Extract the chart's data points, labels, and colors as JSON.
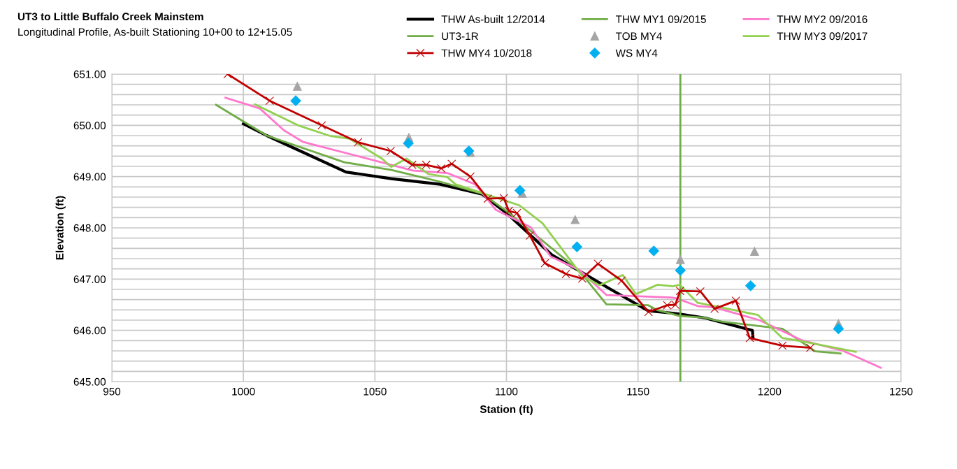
{
  "chart_data": {
    "type": "line",
    "title": "UT3 to Little Buffalo Creek Mainstem",
    "subtitle": "Longitudinal Profile, As-built Stationing 10+00 to 12+15.05",
    "xlabel": "Station (ft)",
    "ylabel": "Elevation (ft)",
    "xlim": [
      950,
      1250
    ],
    "xticks": [
      950,
      1000,
      1050,
      1100,
      1150,
      1200,
      1250
    ],
    "ylim": [
      645,
      651
    ],
    "yticks": [
      {
        "value": 645,
        "label": "645.00"
      },
      {
        "value": 645.2,
        "label": null
      },
      {
        "value": 645.4,
        "label": null
      },
      {
        "value": 645.6,
        "label": null
      },
      {
        "value": 645.8,
        "label": null
      },
      {
        "value": 646,
        "label": "646.00"
      },
      {
        "value": 646.2,
        "label": null
      },
      {
        "value": 646.4,
        "label": null
      },
      {
        "value": 646.6,
        "label": null
      },
      {
        "value": 646.8,
        "label": null
      },
      {
        "value": 647,
        "label": "647.00"
      },
      {
        "value": 647.2,
        "label": null
      },
      {
        "value": 647.4,
        "label": null
      },
      {
        "value": 647.6,
        "label": null
      },
      {
        "value": 647.8,
        "label": null
      },
      {
        "value": 648,
        "label": "648.00"
      },
      {
        "value": 648.2,
        "label": null
      },
      {
        "value": 648.4,
        "label": null
      },
      {
        "value": 648.6,
        "label": null
      },
      {
        "value": 648.8,
        "label": null
      },
      {
        "value": 649,
        "label": "649.00"
      },
      {
        "value": 649.2,
        "label": null
      },
      {
        "value": 649.4,
        "label": null
      },
      {
        "value": 649.6,
        "label": null
      },
      {
        "value": 649.8,
        "label": null
      },
      {
        "value": 650,
        "label": "650.00"
      },
      {
        "value": 650.2,
        "label": null
      },
      {
        "value": 650.4,
        "label": null
      },
      {
        "value": 650.6,
        "label": null
      },
      {
        "value": 650.8,
        "label": null
      },
      {
        "value": 651,
        "label": "651.00"
      }
    ],
    "grid": true,
    "legend": "top right",
    "series": [
      {
        "name": "THW As-built 12/2014",
        "color": "#000000",
        "marker": "none",
        "x": [
          1000,
          1008.9,
          1039,
          1056.2,
          1074.8,
          1090.7,
          1100,
          1117.3,
          1128.7,
          1139.3,
          1153.9,
          1162.4,
          1165.9,
          1175.7,
          1193.5,
          1193.7
        ],
        "values": [
          650.03,
          649.8,
          649.09,
          648.96,
          648.85,
          648.66,
          648.29,
          647.47,
          647.13,
          646.81,
          646.38,
          646.34,
          646.32,
          646.24,
          646.0,
          645.87
        ]
      },
      {
        "name": "THW MY1 09/2015",
        "color": "#70ad47",
        "marker": "none",
        "x": [
          989.6,
          1008.9,
          1038.3,
          1056.2,
          1074.8,
          1090.7,
          1100,
          1127.9,
          1138,
          1153.9,
          1157.1,
          1165.9,
          1175.2,
          1181.8,
          1204.9,
          1217.4,
          1227
        ],
        "values": [
          650.4,
          649.8,
          649.28,
          649.13,
          648.9,
          648.67,
          648.33,
          647.15,
          646.51,
          646.49,
          646.4,
          646.28,
          646.25,
          646.17,
          646.03,
          645.59,
          645.55
        ]
      },
      {
        "name": "THW MY2 09/2016",
        "color": "#ff77cc",
        "marker": "none",
        "x": [
          993.2,
          1006.2,
          1015.5,
          1022.5,
          1056.2,
          1064.2,
          1077.5,
          1088.1,
          1096,
          1109.3,
          1116.8,
          1127.9,
          1138,
          1162.4,
          1164.3,
          1173,
          1178.9,
          1196.1,
          1212.1,
          1228,
          1242.3
        ],
        "values": [
          650.54,
          650.33,
          649.9,
          649.68,
          649.23,
          649.12,
          649.07,
          648.85,
          648.35,
          648.01,
          647.44,
          647.17,
          646.69,
          646.64,
          646.63,
          646.47,
          646.45,
          646.2,
          645.81,
          645.6,
          645.27
        ]
      },
      {
        "name": "UT3-1R",
        "color": "#70ad47",
        "marker": "none",
        "x": [
          1166.1,
          1166.1
        ],
        "values": [
          645,
          651
        ]
      },
      {
        "name": "TOB MY4",
        "type": "scatter",
        "color": "#a5a5a5",
        "marker": "triangle",
        "x": [
          1020.5,
          1062.9,
          1086.3,
          1106,
          1126.1,
          1166.1,
          1194.3,
          1226.2
        ],
        "values": [
          650.76,
          649.76,
          649.47,
          648.67,
          648.16,
          647.38,
          647.54,
          646.13
        ]
      },
      {
        "name": "THW MY3 09/2017",
        "color": "#92d050",
        "marker": "none",
        "x": [
          1004.4,
          1020.8,
          1033.2,
          1040.3,
          1052.7,
          1056.2,
          1062,
          1070.4,
          1077.5,
          1080.6,
          1092.5,
          1104.9,
          1113.7,
          1128.8,
          1135.4,
          1144.2,
          1149.2,
          1157.5,
          1163.3,
          1165.9,
          1172.6,
          1195.6,
          1204.9,
          1212.1,
          1232.8
        ],
        "values": [
          650.41,
          650.0,
          649.79,
          649.74,
          649.35,
          649.19,
          649.35,
          649.05,
          648.99,
          648.85,
          648.65,
          648.44,
          648.09,
          647.06,
          646.88,
          647.08,
          646.71,
          646.89,
          646.86,
          646.89,
          646.54,
          646.3,
          645.85,
          645.79,
          645.58
        ]
      },
      {
        "name": "THW MY4 10/2018",
        "color": "#c00000",
        "marker": "cross",
        "x": [
          994,
          1010,
          1029.8,
          1043.6,
          1056,
          1064.2,
          1069.5,
          1075.2,
          1079.2,
          1086.3,
          1092.9,
          1099,
          1100.9,
          1104,
          1108.9,
          1114.6,
          1122.6,
          1128.8,
          1134.8,
          1143.8,
          1154,
          1161.1,
          1164.2,
          1166,
          1173.7,
          1179.1,
          1187.2,
          1192.5,
          1204.9,
          1215.5
        ],
        "values": [
          651.0,
          650.48,
          650.0,
          649.67,
          649.5,
          649.23,
          649.23,
          649.16,
          649.25,
          649.0,
          648.57,
          648.58,
          648.33,
          648.29,
          647.85,
          647.31,
          647.1,
          647.01,
          647.3,
          646.97,
          646.36,
          646.49,
          646.5,
          646.77,
          646.76,
          646.42,
          646.58,
          645.85,
          645.7,
          645.66
        ]
      },
      {
        "name": "WS MY4",
        "type": "scatter",
        "color": "#00b0f0",
        "marker": "diamond",
        "x": [
          1019.9,
          1062.7,
          1085.7,
          1105.1,
          1126.8,
          1156,
          1166.1,
          1192.8,
          1226.2
        ],
        "values": [
          650.48,
          649.65,
          649.5,
          648.73,
          647.63,
          647.55,
          647.17,
          646.87,
          646.03
        ]
      }
    ]
  }
}
